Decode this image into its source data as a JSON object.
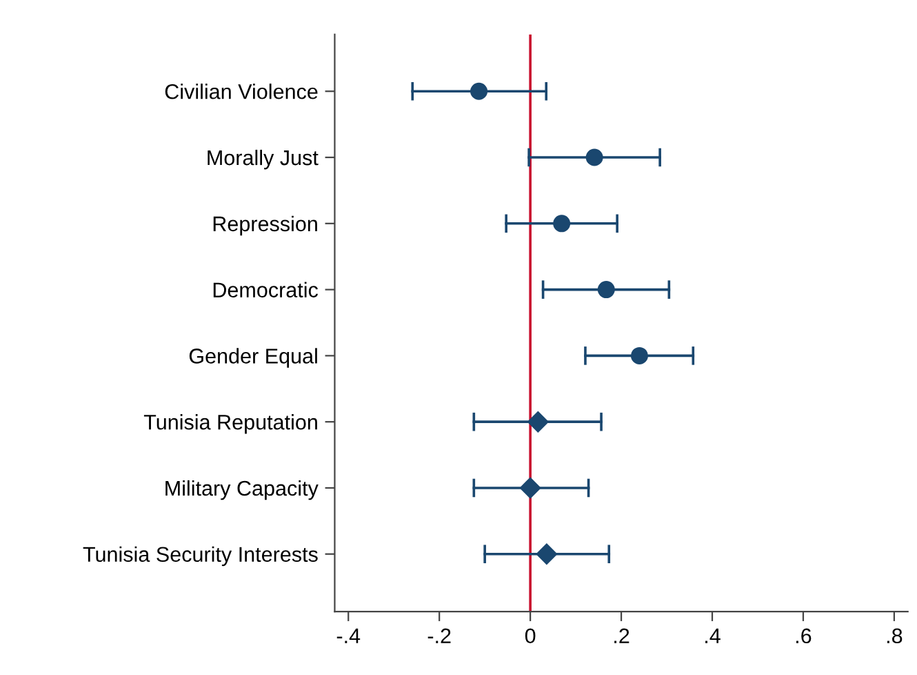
{
  "chart_data": {
    "type": "scatter",
    "orientation": "horizontal",
    "categories": [
      "Civilian Violence",
      "Morally Just",
      "Repression",
      "Democratic",
      "Gender Equal",
      "Tunisia Reputation",
      "Military Capacity",
      "Tunisia Security Interests"
    ],
    "series": [
      {
        "color": "#1a476f",
        "marker": "circle",
        "values": [
          -0.113,
          0.141,
          0.069,
          0.167,
          0.24,
          null,
          null,
          null
        ],
        "errors": [
          [
            -0.259,
            0.035
          ],
          [
            -0.003,
            0.285
          ],
          [
            -0.053,
            0.191
          ],
          [
            0.028,
            0.305
          ],
          [
            0.121,
            0.358
          ],
          null,
          null,
          null
        ]
      },
      {
        "color": "#1a476f",
        "marker": "diamond",
        "values": [
          null,
          null,
          null,
          null,
          null,
          0.017,
          0.0,
          0.036
        ],
        "errors": [
          null,
          null,
          null,
          null,
          null,
          [
            -0.124,
            0.156
          ],
          [
            -0.124,
            0.128
          ],
          [
            -0.1,
            0.173
          ]
        ]
      }
    ],
    "xlim": [
      -0.43,
      0.83
    ],
    "xticks": [
      {
        "value": -0.4,
        "label": "-.4"
      },
      {
        "value": -0.2,
        "label": "-.2"
      },
      0,
      {
        "value": 0.2,
        "label": ".2"
      },
      {
        "value": 0.4,
        "label": ".4"
      },
      {
        "value": 0.6,
        "label": ".6"
      },
      {
        "value": 0.8,
        "label": ".8"
      }
    ],
    "ref_lines": [
      {
        "axis": "x",
        "value": 0,
        "color": "#c8102e"
      }
    ],
    "grid": false
  }
}
